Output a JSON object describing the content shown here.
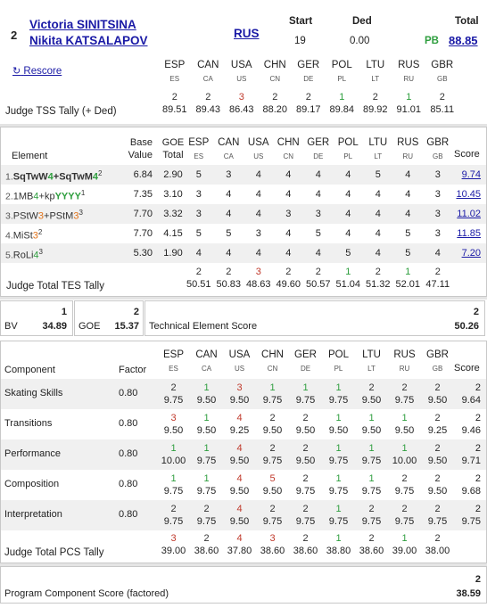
{
  "top": {
    "index": "2",
    "skater1": "Victoria SINITSINA",
    "skater2": "Nikita KATSALAPOV",
    "nation": "RUS",
    "start_label": "Start",
    "start_value": "19",
    "ded_label": "Ded",
    "ded_value": "0.00",
    "total_label": "Total",
    "pb": "PB",
    "total_value": "88.85",
    "rescore": "Rescore"
  },
  "judges": [
    {
      "code": "ESP",
      "sub": "ES"
    },
    {
      "code": "CAN",
      "sub": "CA"
    },
    {
      "code": "USA",
      "sub": "US"
    },
    {
      "code": "CHN",
      "sub": "CN"
    },
    {
      "code": "GER",
      "sub": "DE"
    },
    {
      "code": "POL",
      "sub": "PL"
    },
    {
      "code": "LTU",
      "sub": "LT"
    },
    {
      "code": "RUS",
      "sub": "RU"
    },
    {
      "code": "GBR",
      "sub": "GB"
    }
  ],
  "tally": {
    "label": "Judge TSS Tally (+ Ded)",
    "ranks": [
      {
        "r": "2",
        "c": "dark"
      },
      {
        "r": "2",
        "c": "dark"
      },
      {
        "r": "3",
        "c": "red"
      },
      {
        "r": "2",
        "c": "dark"
      },
      {
        "r": "2",
        "c": "dark"
      },
      {
        "r": "1",
        "c": "green"
      },
      {
        "r": "2",
        "c": "dark"
      },
      {
        "r": "1",
        "c": "green"
      },
      {
        "r": "2",
        "c": "dark"
      }
    ],
    "values": [
      "89.51",
      "89.43",
      "86.43",
      "88.20",
      "89.17",
      "89.84",
      "89.92",
      "91.01",
      "85.11"
    ]
  },
  "elements": {
    "header": {
      "element": "Element",
      "base1": "Base",
      "base2": "Value",
      "goe1": "GOE",
      "goe2": "Total",
      "score": "Score"
    },
    "rows": [
      {
        "num": "1.",
        "parts": [
          {
            "t": "SqTwW",
            "c": "dark",
            "b": true
          },
          {
            "t": "4",
            "c": "green",
            "b": true
          },
          {
            "t": "+SqTwM",
            "c": "dark",
            "b": true
          },
          {
            "t": "4",
            "c": "green",
            "b": true
          },
          {
            "t": "2",
            "c": "dark",
            "sup": true
          }
        ],
        "base": "6.84",
        "goe": "2.90",
        "marks": [
          "5",
          "3",
          "4",
          "4",
          "4",
          "4",
          "5",
          "4",
          "3"
        ],
        "score": "9.74"
      },
      {
        "num": "2.",
        "parts": [
          {
            "t": "1MB",
            "c": "dark"
          },
          {
            "t": "4",
            "c": "green"
          },
          {
            "t": "+kp",
            "c": "dark"
          },
          {
            "t": "YYYY",
            "c": "green",
            "b": true
          },
          {
            "t": "1",
            "c": "dark",
            "sup": true
          }
        ],
        "base": "7.35",
        "goe": "3.10",
        "marks": [
          "3",
          "4",
          "4",
          "4",
          "4",
          "4",
          "4",
          "4",
          "3"
        ],
        "score": "10.45"
      },
      {
        "num": "3.",
        "parts": [
          {
            "t": "PStW",
            "c": "dark"
          },
          {
            "t": "3",
            "c": "orange"
          },
          {
            "t": "+PStM",
            "c": "dark"
          },
          {
            "t": "3",
            "c": "orange"
          },
          {
            "t": "3",
            "c": "dark",
            "sup": true
          }
        ],
        "base": "7.70",
        "goe": "3.32",
        "marks": [
          "3",
          "4",
          "4",
          "3",
          "3",
          "4",
          "4",
          "4",
          "3"
        ],
        "score": "11.02"
      },
      {
        "num": "4.",
        "parts": [
          {
            "t": "MiSt",
            "c": "dark"
          },
          {
            "t": "3",
            "c": "orange"
          },
          {
            "t": "2",
            "c": "dark",
            "sup": true
          }
        ],
        "base": "7.70",
        "goe": "4.15",
        "marks": [
          "5",
          "5",
          "3",
          "4",
          "5",
          "4",
          "4",
          "5",
          "3"
        ],
        "score": "11.85"
      },
      {
        "num": "5.",
        "parts": [
          {
            "t": "RoLi",
            "c": "dark"
          },
          {
            "t": "4",
            "c": "green"
          },
          {
            "t": "3",
            "c": "dark",
            "sup": true
          }
        ],
        "base": "5.30",
        "goe": "1.90",
        "marks": [
          "4",
          "4",
          "4",
          "4",
          "4",
          "5",
          "4",
          "5",
          "4"
        ],
        "score": "7.20"
      }
    ],
    "tes_label": "Judge Total TES Tally",
    "tes_ranks": [
      {
        "r": "2",
        "c": "dark"
      },
      {
        "r": "2",
        "c": "dark"
      },
      {
        "r": "3",
        "c": "red"
      },
      {
        "r": "2",
        "c": "dark"
      },
      {
        "r": "2",
        "c": "dark"
      },
      {
        "r": "1",
        "c": "green"
      },
      {
        "r": "2",
        "c": "dark"
      },
      {
        "r": "1",
        "c": "green"
      },
      {
        "r": "2",
        "c": "dark"
      }
    ],
    "tes_values": [
      "50.51",
      "50.83",
      "48.63",
      "49.60",
      "50.57",
      "51.04",
      "51.32",
      "52.01",
      "47.11"
    ]
  },
  "summary": {
    "bv_label": "BV",
    "bv_rank": "1",
    "bv_value": "34.89",
    "goe_label": "GOE",
    "goe_rank": "2",
    "goe_value": "15.37",
    "tes_label": "Technical Element Score",
    "tes_rank": "2",
    "tes_value": "50.26"
  },
  "components": {
    "header": {
      "component": "Component",
      "factor": "Factor",
      "score": "Score"
    },
    "rows": [
      {
        "name": "Skating Skills",
        "factor": "0.80",
        "ranks": [
          {
            "r": "2",
            "c": "dark"
          },
          {
            "r": "1",
            "c": "green"
          },
          {
            "r": "3",
            "c": "red"
          },
          {
            "r": "1",
            "c": "green"
          },
          {
            "r": "1",
            "c": "green"
          },
          {
            "r": "1",
            "c": "green"
          },
          {
            "r": "2",
            "c": "dark"
          },
          {
            "r": "2",
            "c": "dark"
          },
          {
            "r": "2",
            "c": "dark"
          }
        ],
        "values": [
          "9.75",
          "9.50",
          "9.50",
          "9.75",
          "9.75",
          "9.75",
          "9.50",
          "9.75",
          "9.50"
        ],
        "score_rank": "2",
        "score": "9.64"
      },
      {
        "name": "Transitions",
        "factor": "0.80",
        "ranks": [
          {
            "r": "3",
            "c": "red"
          },
          {
            "r": "1",
            "c": "green"
          },
          {
            "r": "4",
            "c": "red"
          },
          {
            "r": "2",
            "c": "dark"
          },
          {
            "r": "2",
            "c": "dark"
          },
          {
            "r": "1",
            "c": "green"
          },
          {
            "r": "1",
            "c": "green"
          },
          {
            "r": "1",
            "c": "green"
          },
          {
            "r": "2",
            "c": "dark"
          }
        ],
        "values": [
          "9.50",
          "9.50",
          "9.25",
          "9.50",
          "9.50",
          "9.50",
          "9.50",
          "9.50",
          "9.25"
        ],
        "score_rank": "2",
        "score": "9.46"
      },
      {
        "name": "Performance",
        "factor": "0.80",
        "ranks": [
          {
            "r": "1",
            "c": "green"
          },
          {
            "r": "1",
            "c": "green"
          },
          {
            "r": "4",
            "c": "red"
          },
          {
            "r": "2",
            "c": "dark"
          },
          {
            "r": "2",
            "c": "dark"
          },
          {
            "r": "1",
            "c": "green"
          },
          {
            "r": "1",
            "c": "green"
          },
          {
            "r": "1",
            "c": "green"
          },
          {
            "r": "2",
            "c": "dark"
          }
        ],
        "values": [
          "10.00",
          "9.75",
          "9.50",
          "9.75",
          "9.50",
          "9.75",
          "9.75",
          "10.00",
          "9.50"
        ],
        "score_rank": "2",
        "score": "9.71"
      },
      {
        "name": "Composition",
        "factor": "0.80",
        "ranks": [
          {
            "r": "1",
            "c": "green"
          },
          {
            "r": "1",
            "c": "green"
          },
          {
            "r": "4",
            "c": "red"
          },
          {
            "r": "5",
            "c": "red"
          },
          {
            "r": "2",
            "c": "dark"
          },
          {
            "r": "1",
            "c": "green"
          },
          {
            "r": "1",
            "c": "green"
          },
          {
            "r": "2",
            "c": "dark"
          },
          {
            "r": "2",
            "c": "dark"
          }
        ],
        "values": [
          "9.75",
          "9.75",
          "9.50",
          "9.50",
          "9.75",
          "9.75",
          "9.75",
          "9.75",
          "9.50"
        ],
        "score_rank": "2",
        "score": "9.68"
      },
      {
        "name": "Interpretation",
        "factor": "0.80",
        "ranks": [
          {
            "r": "2",
            "c": "dark"
          },
          {
            "r": "2",
            "c": "dark"
          },
          {
            "r": "4",
            "c": "red"
          },
          {
            "r": "2",
            "c": "dark"
          },
          {
            "r": "2",
            "c": "dark"
          },
          {
            "r": "1",
            "c": "green"
          },
          {
            "r": "2",
            "c": "dark"
          },
          {
            "r": "2",
            "c": "dark"
          },
          {
            "r": "2",
            "c": "dark"
          }
        ],
        "values": [
          "9.75",
          "9.75",
          "9.50",
          "9.75",
          "9.75",
          "9.75",
          "9.75",
          "9.75",
          "9.75"
        ],
        "score_rank": "2",
        "score": "9.75"
      }
    ],
    "pcs_label": "Judge Total PCS Tally",
    "pcs_ranks": [
      {
        "r": "3",
        "c": "red"
      },
      {
        "r": "2",
        "c": "dark"
      },
      {
        "r": "4",
        "c": "red"
      },
      {
        "r": "3",
        "c": "red"
      },
      {
        "r": "2",
        "c": "dark"
      },
      {
        "r": "1",
        "c": "green"
      },
      {
        "r": "2",
        "c": "dark"
      },
      {
        "r": "1",
        "c": "green"
      },
      {
        "r": "2",
        "c": "dark"
      }
    ],
    "pcs_values": [
      "39.00",
      "38.60",
      "37.80",
      "38.60",
      "38.60",
      "38.80",
      "38.60",
      "39.00",
      "38.00"
    ]
  },
  "pcs_summary": {
    "label": "Program Component Score (factored)",
    "rank": "2",
    "value": "38.59"
  },
  "colors": {
    "red": "#c0392b",
    "green": "#2e9e3e",
    "orange": "#e0731a",
    "dark": "#333333",
    "link": "#1a1aa6",
    "stripe": "#f0f0f0"
  }
}
